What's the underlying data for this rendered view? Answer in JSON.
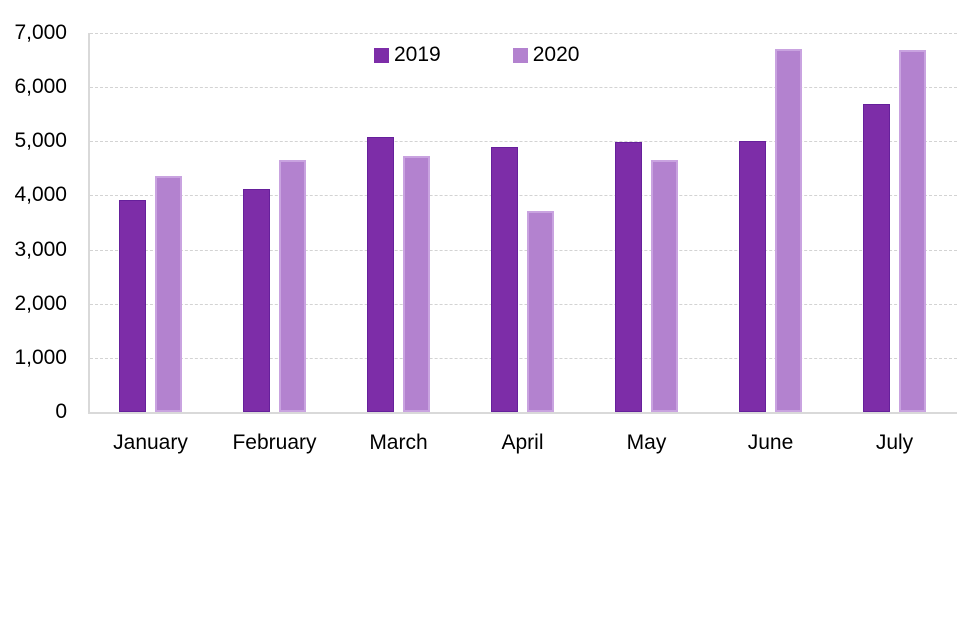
{
  "chart_data": {
    "type": "bar",
    "title": "",
    "xlabel": "",
    "ylabel": "",
    "categories": [
      "January",
      "February",
      "March",
      "April",
      "May",
      "June",
      "July"
    ],
    "series": [
      {
        "name": "2019",
        "color": "#7d2da8",
        "border_color": "#66209b",
        "values": [
          3920,
          4120,
          5070,
          4900,
          4990,
          5000,
          5690
        ]
      },
      {
        "name": "2020",
        "color": "#b382cf",
        "border_color": "#c9a3e0",
        "values": [
          4350,
          4650,
          4720,
          3710,
          4650,
          6700,
          6690
        ]
      }
    ],
    "ylim": [
      0,
      7000
    ],
    "ytick_interval": 1000,
    "ytick_labels": [
      "0",
      "1,000",
      "2,000",
      "3,000",
      "4,000",
      "5,000",
      "6,000",
      "7,000"
    ],
    "grid": "horizontal-dashed",
    "legend_position": "top-center",
    "background": "#ffffff"
  }
}
